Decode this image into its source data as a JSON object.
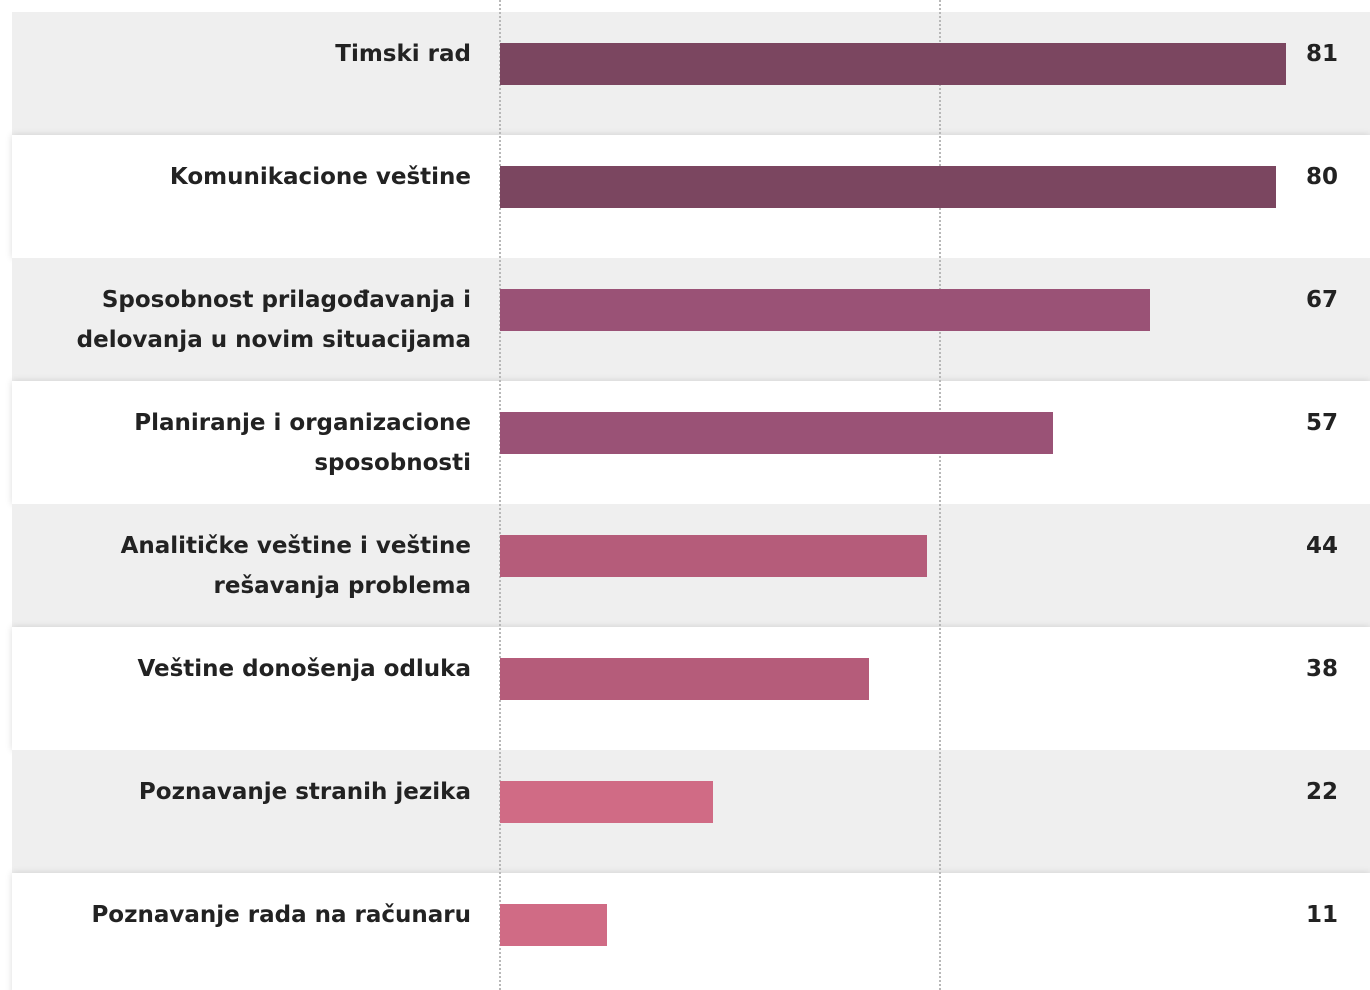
{
  "chart_data": {
    "type": "bar",
    "orientation": "horizontal",
    "categories": [
      "Timski rad",
      "Komunikacione veštine",
      "Sposobnost prilagođavanja i delovanja u novim situacijama",
      "Planiranje i organizacione sposobnosti",
      "Analitičke veštine i veštine rešavanja problema",
      "Veštine donošenja odluka",
      "Poznavanje stranih jezika",
      "Poznavanje rada na računaru"
    ],
    "values": [
      81,
      80,
      67,
      57,
      44,
      38,
      22,
      11
    ],
    "colors": [
      "#7b4660",
      "#7b4660",
      "#9a5276",
      "#9a5276",
      "#b55c7a",
      "#b55c7a",
      "#d06b85",
      "#d06b85"
    ],
    "xlim": [
      0,
      90
    ]
  }
}
